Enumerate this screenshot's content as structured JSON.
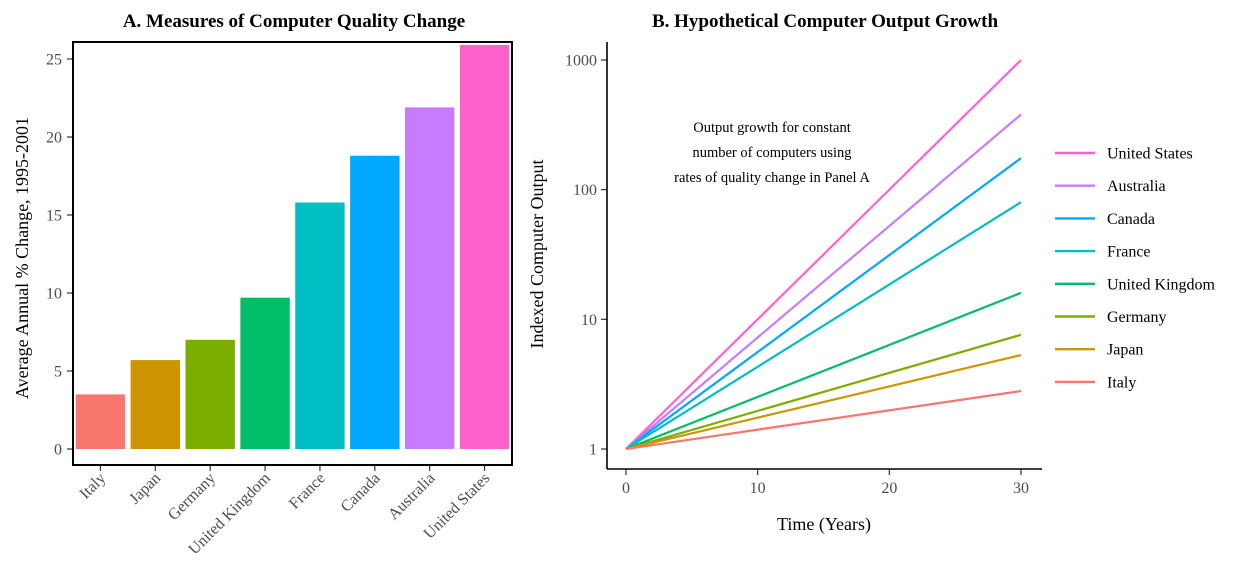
{
  "chart_data": [
    {
      "type": "bar",
      "title": "A.  Measures of Computer Quality Change",
      "xlabel": "",
      "ylabel": "Average Annual % Change, 1995-2001",
      "categories": [
        "Italy",
        "Japan",
        "Germany",
        "United Kingdom",
        "France",
        "Canada",
        "Australia",
        "United States"
      ],
      "values": [
        3.5,
        5.7,
        7.0,
        9.7,
        15.8,
        18.8,
        21.9,
        25.9
      ],
      "colors": [
        "#F8766D",
        "#CD9600",
        "#7CAE00",
        "#00BE67",
        "#00BFC4",
        "#00A9FF",
        "#C77CFF",
        "#FF61CC"
      ],
      "ylim": [
        0,
        27
      ],
      "yticks": [
        0,
        5,
        10,
        15,
        20,
        25
      ],
      "grid": false
    },
    {
      "type": "line",
      "title": "B.  Hypothetical Computer Output Growth",
      "xlabel": "Time (Years)",
      "ylabel": "Indexed Computer Output",
      "yscale": "log",
      "xlim": [
        -1.5,
        31.5
      ],
      "ylim": [
        0.8,
        1150
      ],
      "xticks": [
        0,
        10,
        20,
        30
      ],
      "yticks": [
        1,
        10,
        100,
        1000
      ],
      "annotation": [
        "Output growth for constant",
        "number of computers using",
        "rates of quality change in Panel A"
      ],
      "legend_position": "right",
      "grid": false,
      "series": [
        {
          "name": "United States",
          "color": "#FF61CC",
          "x": [
            0,
            30
          ],
          "y": [
            1,
            1000
          ]
        },
        {
          "name": "Australia",
          "color": "#C77CFF",
          "x": [
            0,
            30
          ],
          "y": [
            1,
            380
          ]
        },
        {
          "name": "Canada",
          "color": "#00A9FF",
          "x": [
            0,
            30
          ],
          "y": [
            1,
            175
          ]
        },
        {
          "name": "France",
          "color": "#00BFC4",
          "x": [
            0,
            30
          ],
          "y": [
            1,
            80
          ]
        },
        {
          "name": "United Kingdom",
          "color": "#00BE67",
          "x": [
            0,
            30
          ],
          "y": [
            1,
            16
          ]
        },
        {
          "name": "Germany",
          "color": "#7CAE00",
          "x": [
            0,
            30
          ],
          "y": [
            1,
            7.6
          ]
        },
        {
          "name": "Japan",
          "color": "#CD9600",
          "x": [
            0,
            30
          ],
          "y": [
            1,
            5.3
          ]
        },
        {
          "name": "Italy",
          "color": "#F8766D",
          "x": [
            0,
            30
          ],
          "y": [
            1,
            2.8
          ]
        }
      ]
    }
  ]
}
